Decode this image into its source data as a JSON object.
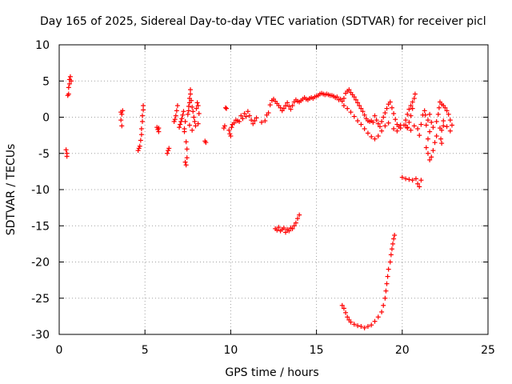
{
  "chart_data": {
    "type": "scatter",
    "title": "Day 165 of 2025, Sidereal Day-to-day VTEC variation (SDTVAR) for receiver picl",
    "xlabel": "GPS time / hours",
    "ylabel": "SDTVAR / TECUs",
    "xlim": [
      0,
      25
    ],
    "ylim": [
      -30,
      10
    ],
    "xticks": [
      0,
      5,
      10,
      15,
      20,
      25
    ],
    "yticks": [
      10,
      5,
      0,
      -5,
      -10,
      -15,
      -20,
      -25,
      -30
    ],
    "grid": true,
    "marker": "+",
    "color": "#ff0000",
    "series": [
      {
        "name": "SDTVAR",
        "points": [
          [
            0.4,
            -4.5
          ],
          [
            0.45,
            -5.0
          ],
          [
            0.45,
            -5.4
          ],
          [
            0.5,
            3.0
          ],
          [
            0.55,
            3.2
          ],
          [
            0.55,
            4.1
          ],
          [
            0.6,
            4.6
          ],
          [
            0.6,
            5.2
          ],
          [
            0.65,
            5.6
          ],
          [
            0.7,
            5.0
          ],
          [
            3.6,
            0.7
          ],
          [
            3.65,
            0.4
          ],
          [
            3.7,
            0.9
          ],
          [
            3.6,
            -0.4
          ],
          [
            3.65,
            -1.2
          ],
          [
            4.6,
            -4.6
          ],
          [
            4.65,
            -4.3
          ],
          [
            4.7,
            -4.0
          ],
          [
            4.75,
            -3.2
          ],
          [
            4.8,
            -2.4
          ],
          [
            4.8,
            -1.6
          ],
          [
            4.85,
            -0.6
          ],
          [
            4.85,
            0.2
          ],
          [
            4.9,
            1.0
          ],
          [
            4.9,
            1.6
          ],
          [
            5.7,
            -1.4
          ],
          [
            5.75,
            -1.7
          ],
          [
            5.8,
            -2.0
          ],
          [
            5.8,
            -1.5
          ],
          [
            6.3,
            -5.0
          ],
          [
            6.35,
            -4.6
          ],
          [
            6.4,
            -4.3
          ],
          [
            6.7,
            -0.6
          ],
          [
            6.75,
            -0.3
          ],
          [
            6.8,
            0.2
          ],
          [
            6.85,
            0.9
          ],
          [
            6.9,
            1.6
          ],
          [
            7.0,
            -1.4
          ],
          [
            7.05,
            -1.0
          ],
          [
            7.1,
            -0.6
          ],
          [
            7.15,
            -0.2
          ],
          [
            7.2,
            0.3
          ],
          [
            7.25,
            0.8
          ],
          [
            7.3,
            -1.6
          ],
          [
            7.3,
            -2.0
          ],
          [
            7.35,
            -0.6
          ],
          [
            7.35,
            -6.2
          ],
          [
            7.4,
            -6.6
          ],
          [
            7.45,
            -5.6
          ],
          [
            7.4,
            -3.4
          ],
          [
            7.45,
            -4.4
          ],
          [
            7.5,
            0.4
          ],
          [
            7.55,
            0.9
          ],
          [
            7.55,
            1.5
          ],
          [
            7.6,
            2.0
          ],
          [
            7.6,
            2.6
          ],
          [
            7.65,
            3.2
          ],
          [
            7.65,
            3.8
          ],
          [
            7.7,
            2.3
          ],
          [
            7.75,
            1.4
          ],
          [
            7.8,
            0.8
          ],
          [
            7.85,
            0.0
          ],
          [
            7.9,
            -0.6
          ],
          [
            7.95,
            -1.2
          ],
          [
            8.0,
            1.2
          ],
          [
            8.05,
            2.0
          ],
          [
            8.1,
            1.6
          ],
          [
            8.15,
            0.5
          ],
          [
            8.1,
            -0.9
          ],
          [
            7.75,
            -1.8
          ],
          [
            7.6,
            -1.1
          ],
          [
            8.5,
            -3.3
          ],
          [
            8.55,
            -3.5
          ],
          [
            9.6,
            -1.5
          ],
          [
            9.65,
            -1.2
          ],
          [
            9.7,
            1.3
          ],
          [
            9.75,
            1.2
          ],
          [
            9.9,
            -1.8
          ],
          [
            9.95,
            -2.3
          ],
          [
            10.0,
            -2.6
          ],
          [
            10.05,
            -1.4
          ],
          [
            10.1,
            -1.0
          ],
          [
            10.2,
            -0.8
          ],
          [
            10.3,
            -0.4
          ],
          [
            10.4,
            -0.5
          ],
          [
            10.5,
            -0.6
          ],
          [
            10.6,
            0.2
          ],
          [
            10.7,
            -0.2
          ],
          [
            10.8,
            0.5
          ],
          [
            10.9,
            0.1
          ],
          [
            11.0,
            0.8
          ],
          [
            11.1,
            0.2
          ],
          [
            11.2,
            -0.4
          ],
          [
            11.3,
            -0.9
          ],
          [
            11.4,
            -0.5
          ],
          [
            11.5,
            -0.1
          ],
          [
            11.8,
            -0.7
          ],
          [
            12.0,
            -0.5
          ],
          [
            12.1,
            0.3
          ],
          [
            12.2,
            0.6
          ],
          [
            12.3,
            1.7
          ],
          [
            12.4,
            2.3
          ],
          [
            12.5,
            2.5
          ],
          [
            12.6,
            2.2
          ],
          [
            12.7,
            1.9
          ],
          [
            12.8,
            1.6
          ],
          [
            12.9,
            1.3
          ],
          [
            13.0,
            0.9
          ],
          [
            13.1,
            1.2
          ],
          [
            13.2,
            1.6
          ],
          [
            13.3,
            2.0
          ],
          [
            13.4,
            1.5
          ],
          [
            13.5,
            1.1
          ],
          [
            13.6,
            1.6
          ],
          [
            13.7,
            2.1
          ],
          [
            13.8,
            2.4
          ],
          [
            13.9,
            2.2
          ],
          [
            14.0,
            2.1
          ],
          [
            14.1,
            2.3
          ],
          [
            14.2,
            2.5
          ],
          [
            14.3,
            2.7
          ],
          [
            14.4,
            2.5
          ],
          [
            14.5,
            2.4
          ],
          [
            14.6,
            2.6
          ],
          [
            14.7,
            2.7
          ],
          [
            14.8,
            2.6
          ],
          [
            14.9,
            2.8
          ],
          [
            15.0,
            2.9
          ],
          [
            15.1,
            3.0
          ],
          [
            15.2,
            3.2
          ],
          [
            15.3,
            3.3
          ],
          [
            15.4,
            3.2
          ],
          [
            15.5,
            3.1
          ],
          [
            15.6,
            3.2
          ],
          [
            15.7,
            3.1
          ],
          [
            15.8,
            3.0
          ],
          [
            15.9,
            3.0
          ],
          [
            16.0,
            2.9
          ],
          [
            16.1,
            2.7
          ],
          [
            16.2,
            2.8
          ],
          [
            16.3,
            2.4
          ],
          [
            16.4,
            2.5
          ],
          [
            16.5,
            2.2
          ],
          [
            16.6,
            2.6
          ],
          [
            16.7,
            3.3
          ],
          [
            16.8,
            3.6
          ],
          [
            16.9,
            3.8
          ],
          [
            17.0,
            3.4
          ],
          [
            17.1,
            3.1
          ],
          [
            17.2,
            2.8
          ],
          [
            17.3,
            2.4
          ],
          [
            17.4,
            2.0
          ],
          [
            17.5,
            1.6
          ],
          [
            17.6,
            1.2
          ],
          [
            17.7,
            0.8
          ],
          [
            17.8,
            0.3
          ],
          [
            17.9,
            -0.2
          ],
          [
            18.0,
            -0.5
          ],
          [
            18.1,
            -0.6
          ],
          [
            18.2,
            -0.5
          ],
          [
            18.3,
            -0.7
          ],
          [
            16.6,
            1.6
          ],
          [
            16.8,
            1.2
          ],
          [
            17.0,
            0.7
          ],
          [
            17.2,
            0.1
          ],
          [
            17.4,
            -0.5
          ],
          [
            17.6,
            -1.0
          ],
          [
            17.8,
            -1.6
          ],
          [
            18.0,
            -2.2
          ],
          [
            18.2,
            -2.7
          ],
          [
            18.4,
            -3.0
          ],
          [
            18.6,
            -2.6
          ],
          [
            18.8,
            -1.9
          ],
          [
            19.0,
            -1.2
          ],
          [
            19.2,
            -0.8
          ],
          [
            18.4,
            0.2
          ],
          [
            18.5,
            -0.4
          ],
          [
            18.6,
            -0.9
          ],
          [
            18.7,
            -1.3
          ],
          [
            18.8,
            -0.6
          ],
          [
            18.9,
            0.0
          ],
          [
            19.0,
            0.6
          ],
          [
            19.1,
            1.2
          ],
          [
            19.2,
            1.8
          ],
          [
            19.3,
            2.1
          ],
          [
            19.4,
            1.3
          ],
          [
            19.5,
            0.5
          ],
          [
            19.6,
            -0.3
          ],
          [
            19.7,
            -1.0
          ],
          [
            19.8,
            -1.3
          ],
          [
            19.9,
            -1.1
          ],
          [
            19.5,
            -1.6
          ],
          [
            19.7,
            -1.9
          ],
          [
            19.9,
            -1.5
          ],
          [
            20.1,
            -1.1
          ],
          [
            20.3,
            -1.5
          ],
          [
            20.5,
            -1.8
          ],
          [
            20.7,
            -1.2
          ],
          [
            20.9,
            -1.6
          ],
          [
            20.2,
            -0.4
          ],
          [
            20.3,
            0.4
          ],
          [
            20.4,
            1.1
          ],
          [
            20.5,
            1.6
          ],
          [
            20.6,
            2.1
          ],
          [
            20.7,
            2.6
          ],
          [
            20.75,
            3.2
          ],
          [
            20.6,
            1.2
          ],
          [
            20.5,
            0.2
          ],
          [
            20.4,
            -0.7
          ],
          [
            20.3,
            -1.4
          ],
          [
            20.2,
            -1.1
          ],
          [
            20.0,
            -8.3
          ],
          [
            20.2,
            -8.5
          ],
          [
            20.4,
            -8.6
          ],
          [
            20.6,
            -8.7
          ],
          [
            20.8,
            -8.5
          ],
          [
            20.9,
            -9.2
          ],
          [
            21.0,
            -9.6
          ],
          [
            21.1,
            -8.7
          ],
          [
            21.0,
            -2.5
          ],
          [
            21.1,
            -1.0
          ],
          [
            21.2,
            0.3
          ],
          [
            21.3,
            0.9
          ],
          [
            21.35,
            0.3
          ],
          [
            21.4,
            -1.1
          ],
          [
            21.5,
            -0.4
          ],
          [
            21.6,
            0.4
          ],
          [
            21.7,
            -0.7
          ],
          [
            21.8,
            -1.4
          ],
          [
            21.6,
            -2.0
          ],
          [
            21.5,
            -3.0
          ],
          [
            21.4,
            -4.2
          ],
          [
            21.5,
            -5.0
          ],
          [
            21.6,
            -5.9
          ],
          [
            21.7,
            -5.5
          ],
          [
            21.8,
            -4.6
          ],
          [
            21.9,
            -3.5
          ],
          [
            22.0,
            -2.6
          ],
          [
            22.0,
            -0.6
          ],
          [
            22.1,
            0.4
          ],
          [
            22.15,
            1.3
          ],
          [
            22.2,
            2.1
          ],
          [
            22.3,
            1.8
          ],
          [
            22.4,
            1.6
          ],
          [
            22.5,
            1.3
          ],
          [
            22.6,
            0.9
          ],
          [
            22.7,
            0.4
          ],
          [
            22.8,
            -0.4
          ],
          [
            22.9,
            -1.1
          ],
          [
            22.8,
            -1.9
          ],
          [
            22.6,
            -1.3
          ],
          [
            22.4,
            -0.5
          ],
          [
            22.2,
            -1.5
          ],
          [
            22.3,
            -1.8
          ],
          [
            22.4,
            -1.2
          ],
          [
            22.25,
            -3.0
          ],
          [
            22.3,
            -3.6
          ],
          [
            12.6,
            -15.4
          ],
          [
            12.7,
            -15.6
          ],
          [
            12.8,
            -15.2
          ],
          [
            12.9,
            -15.7
          ],
          [
            13.0,
            -15.5
          ],
          [
            13.1,
            -15.3
          ],
          [
            13.2,
            -15.9
          ],
          [
            13.3,
            -15.5
          ],
          [
            13.4,
            -15.7
          ],
          [
            13.5,
            -15.3
          ],
          [
            13.6,
            -15.4
          ],
          [
            13.7,
            -15.0
          ],
          [
            13.8,
            -14.6
          ],
          [
            13.9,
            -14.0
          ],
          [
            14.0,
            -13.5
          ],
          [
            16.5,
            -26.0
          ],
          [
            16.6,
            -26.4
          ],
          [
            16.7,
            -27.0
          ],
          [
            16.8,
            -27.6
          ],
          [
            16.9,
            -28.0
          ],
          [
            17.0,
            -28.3
          ],
          [
            17.2,
            -28.6
          ],
          [
            17.4,
            -28.8
          ],
          [
            17.6,
            -28.9
          ],
          [
            17.8,
            -29.1
          ],
          [
            18.0,
            -28.9
          ],
          [
            18.2,
            -28.7
          ],
          [
            18.4,
            -28.2
          ],
          [
            18.6,
            -27.6
          ],
          [
            18.8,
            -26.9
          ],
          [
            18.9,
            -26.0
          ],
          [
            19.0,
            -25.0
          ],
          [
            19.05,
            -24.0
          ],
          [
            19.1,
            -23.0
          ],
          [
            19.15,
            -22.0
          ],
          [
            19.2,
            -21.0
          ],
          [
            19.3,
            -20.0
          ],
          [
            19.35,
            -19.0
          ],
          [
            19.4,
            -18.2
          ],
          [
            19.45,
            -17.5
          ],
          [
            19.5,
            -16.8
          ],
          [
            19.55,
            -16.3
          ]
        ]
      }
    ]
  }
}
